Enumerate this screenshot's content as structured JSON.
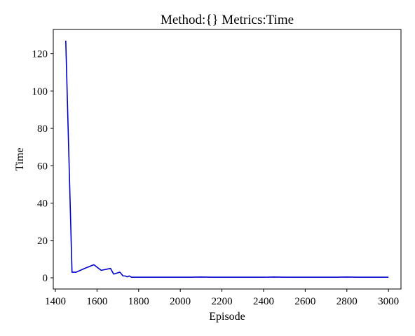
{
  "chart_data": {
    "type": "line",
    "title": "Method:{}   Metrics:Time",
    "xlabel": "Episode",
    "ylabel": "Time",
    "xlim": [
      1390,
      3060
    ],
    "ylim": [
      -6,
      133
    ],
    "xticks": [
      1400,
      1600,
      1800,
      2000,
      2200,
      2400,
      2600,
      2800,
      3000
    ],
    "yticks": [
      0,
      20,
      40,
      60,
      80,
      100,
      120
    ],
    "grid": false,
    "legend": "none",
    "series": [
      {
        "color": "#0000cc",
        "x": [
          1450,
          1480,
          1500,
          1540,
          1585,
          1620,
          1665,
          1680,
          1710,
          1725,
          1735,
          1745,
          1755,
          1765,
          1780,
          1850,
          1900,
          1950,
          2000,
          2050,
          2100,
          2150,
          2200,
          2250,
          2300,
          2350,
          2400,
          2450,
          2500,
          2550,
          2600,
          2650,
          2700,
          2750,
          2800,
          2850,
          2900,
          2950,
          3000
        ],
        "y": [
          127,
          3,
          3,
          5,
          7,
          4,
          5,
          2,
          3,
          1,
          1,
          0.5,
          1,
          0.3,
          0.3,
          0.3,
          0.3,
          0.3,
          0.3,
          0.3,
          0.4,
          0.3,
          0.3,
          0.3,
          0.3,
          0.3,
          0.3,
          0.4,
          0.3,
          0.3,
          0.3,
          0.3,
          0.3,
          0.3,
          0.4,
          0.3,
          0.3,
          0.3,
          0.3
        ]
      }
    ]
  }
}
